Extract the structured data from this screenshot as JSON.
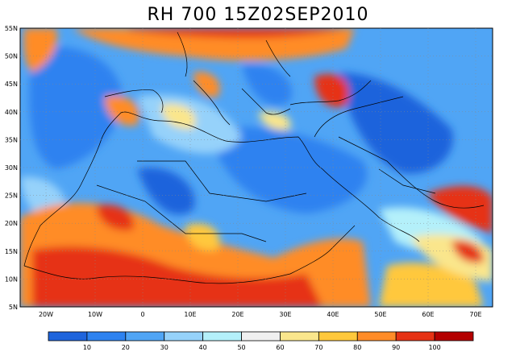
{
  "title": "RH 700 15Z02SEP2010",
  "axes": {
    "lat_labels": [
      "55N",
      "50N",
      "45N",
      "40N",
      "35N",
      "30N",
      "25N",
      "20N",
      "15N",
      "10N",
      "5N"
    ],
    "lon_labels": [
      "20W",
      "10W",
      "0",
      "10E",
      "20E",
      "30E",
      "40E",
      "50E",
      "60E",
      "70E"
    ]
  },
  "colorbar": {
    "colors": [
      "#1e64dc",
      "#2d82f0",
      "#50a5f5",
      "#96d2fa",
      "#b4f0fa",
      "#f0f0f0",
      "#fae68c",
      "#ffc83c",
      "#ff8c28",
      "#e63214",
      "#b40000"
    ],
    "labels": [
      "10",
      "20",
      "30",
      "40",
      "50",
      "60",
      "70",
      "80",
      "90",
      "100"
    ]
  }
}
